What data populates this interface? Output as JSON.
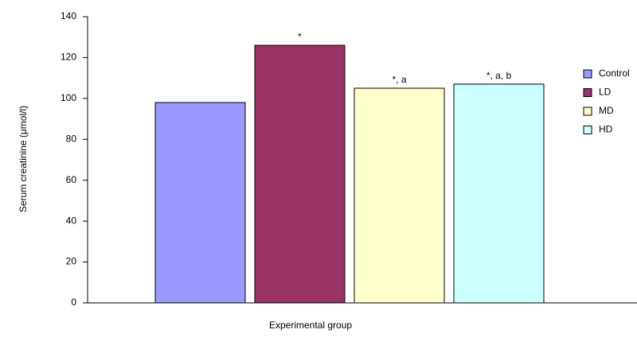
{
  "chart_data": {
    "type": "bar",
    "y_label": "Serum creatinine (μmol/l)",
    "x_label": "Experimental group",
    "categories": [
      null
    ],
    "series": [
      {
        "name": "Control",
        "color": "#9999ff",
        "values": [
          98
        ]
      },
      {
        "name": "LD",
        "color": "#993366",
        "values": [
          126
        ],
        "annotation": "*"
      },
      {
        "name": "MD",
        "color": "#ffffcc",
        "values": [
          105
        ],
        "annotation": "*, a"
      },
      {
        "name": "HD",
        "color": "#ccffff",
        "values": [
          107
        ],
        "annotation": "*, a, b"
      }
    ],
    "ylim": [
      0,
      140
    ],
    "yticks": [
      0,
      20,
      40,
      60,
      80,
      100,
      120,
      140
    ],
    "legend": "right"
  }
}
